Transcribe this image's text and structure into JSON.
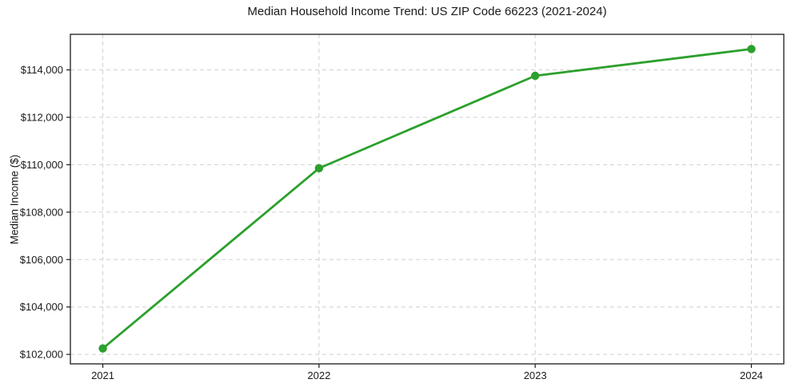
{
  "figure": {
    "background_color": "#ffffff"
  },
  "chart_data": {
    "type": "line",
    "title": "Median Household Income Trend: US ZIP Code 66223 (2021-2024)",
    "xlabel": "",
    "ylabel": "Median Income ($)",
    "x": [
      2021,
      2022,
      2023,
      2024
    ],
    "values": [
      102250,
      109850,
      113750,
      114880
    ],
    "x_tick_labels": [
      "2021",
      "2022",
      "2023",
      "2024"
    ],
    "y_ticks": [
      {
        "value": 102000,
        "label": "$102,000"
      },
      {
        "value": 104000,
        "label": "$104,000"
      },
      {
        "value": 106000,
        "label": "$106,000"
      },
      {
        "value": 108000,
        "label": "$108,000"
      },
      {
        "value": 110000,
        "label": "$110,000"
      },
      {
        "value": 112000,
        "label": "$112,000"
      },
      {
        "value": 114000,
        "label": "$114,000"
      }
    ],
    "xlim": [
      2020.85,
      2024.15
    ],
    "ylim": [
      101600,
      115500
    ],
    "line_color": "#2ca02c",
    "marker": "circle",
    "marker_radius": 5.2,
    "line_width": 2.8,
    "grid": {
      "visible": true,
      "style": "dashed",
      "color": "#d0d0d0"
    },
    "spine_color": "#1a1a1a",
    "legend": "none"
  }
}
